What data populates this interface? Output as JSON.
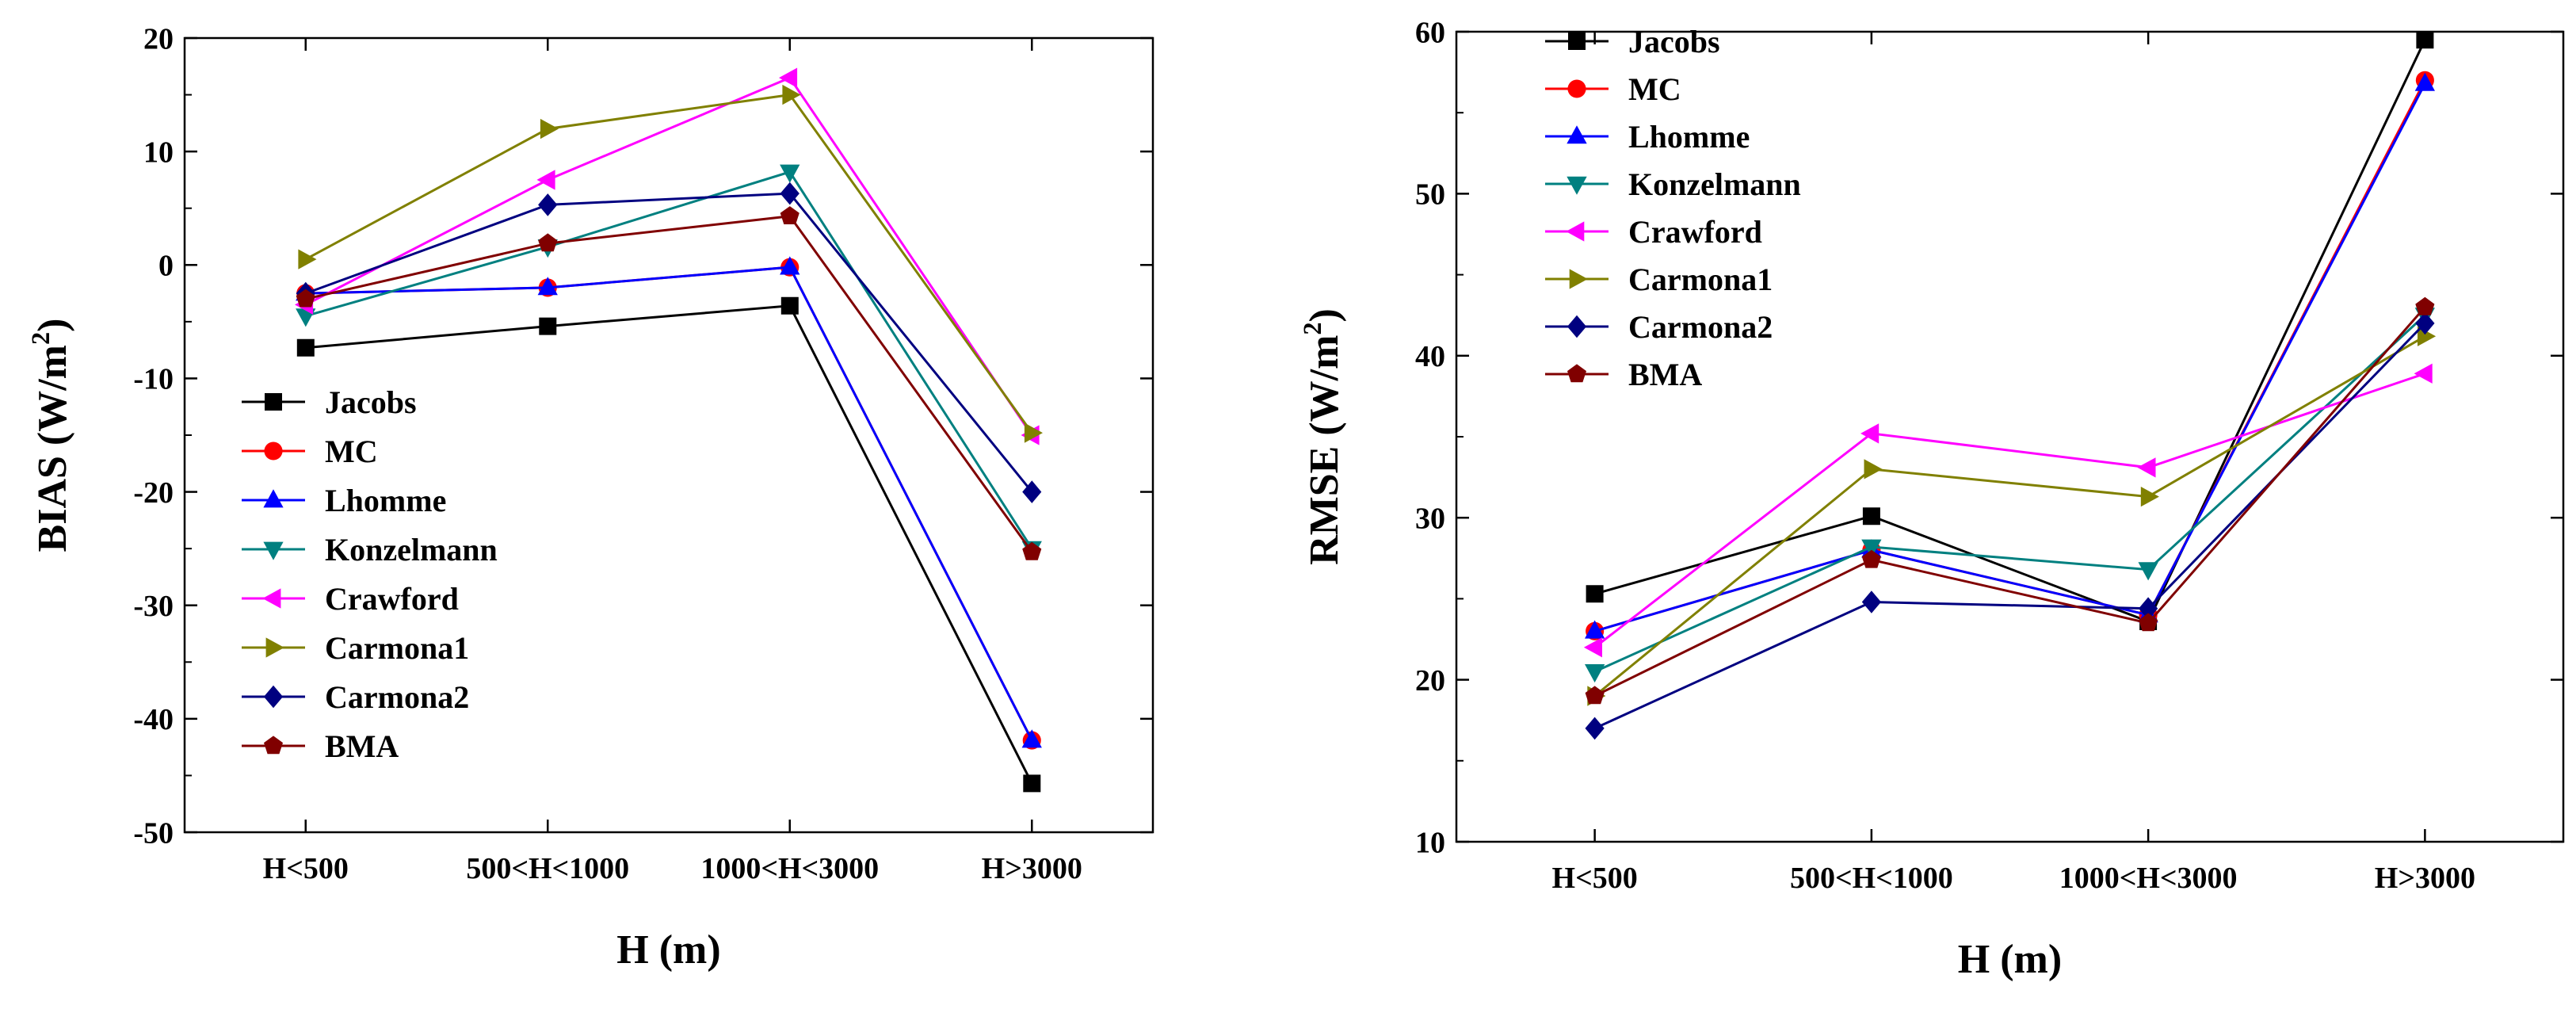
{
  "chart_data": [
    {
      "type": "line",
      "categories": [
        "H<500",
        "500<H<1000",
        "1000<H<3000",
        "H>3000"
      ],
      "xlabel": "H (m)",
      "ylabel": "BIAS (W/m2)",
      "ylim": [
        -50,
        20
      ],
      "yticks": [
        -50,
        -40,
        -30,
        -20,
        -10,
        0,
        10,
        20
      ],
      "grid": false,
      "legend": "bottom-left",
      "series": [
        {
          "name": "Jacobs",
          "color": "#000000",
          "marker": "square",
          "values": [
            -7.3,
            -5.4,
            -3.6,
            -45.7
          ]
        },
        {
          "name": "MC",
          "color": "#ff0000",
          "marker": "circle",
          "values": [
            -2.5,
            -2.0,
            -0.2,
            -41.9
          ]
        },
        {
          "name": "Lhomme",
          "color": "#0000ff",
          "marker": "triangle-up",
          "values": [
            -2.5,
            -2.0,
            -0.2,
            -41.9
          ]
        },
        {
          "name": "Konzelmann",
          "color": "#008080",
          "marker": "triangle-down",
          "values": [
            -4.5,
            1.6,
            8.2,
            -25.0
          ]
        },
        {
          "name": "Crawford",
          "color": "#ff00ff",
          "marker": "triangle-left",
          "values": [
            -3.5,
            7.5,
            16.5,
            -15.0
          ]
        },
        {
          "name": "Carmona1",
          "color": "#808000",
          "marker": "triangle-right",
          "values": [
            0.5,
            12.0,
            15.0,
            -14.8
          ]
        },
        {
          "name": "Carmona2",
          "color": "#000080",
          "marker": "diamond",
          "values": [
            -2.5,
            5.3,
            6.3,
            -20.0
          ]
        },
        {
          "name": "BMA",
          "color": "#800000",
          "marker": "pentagon",
          "values": [
            -3.0,
            1.9,
            4.3,
            -25.3
          ]
        }
      ]
    },
    {
      "type": "line",
      "categories": [
        "H<500",
        "500<H<1000",
        "1000<H<3000",
        "H>3000"
      ],
      "xlabel": "H (m)",
      "ylabel": "RMSE (W/m2)",
      "ylim": [
        10,
        60
      ],
      "yticks": [
        10,
        20,
        30,
        40,
        50,
        60
      ],
      "grid": false,
      "legend": "top-left",
      "series": [
        {
          "name": "Jacobs",
          "color": "#000000",
          "marker": "square",
          "values": [
            25.3,
            30.1,
            23.6,
            59.5
          ]
        },
        {
          "name": "MC",
          "color": "#ff0000",
          "marker": "circle",
          "values": [
            23.0,
            28.0,
            24.0,
            57.0
          ]
        },
        {
          "name": "Lhomme",
          "color": "#0000ff",
          "marker": "triangle-up",
          "values": [
            23.0,
            28.0,
            24.0,
            56.8
          ]
        },
        {
          "name": "Konzelmann",
          "color": "#008080",
          "marker": "triangle-down",
          "values": [
            20.5,
            28.2,
            26.8,
            42.5
          ]
        },
        {
          "name": "Crawford",
          "color": "#ff00ff",
          "marker": "triangle-left",
          "values": [
            22.0,
            35.2,
            33.1,
            38.9
          ]
        },
        {
          "name": "Carmona1",
          "color": "#808000",
          "marker": "triangle-right",
          "values": [
            19.0,
            33.0,
            31.3,
            41.2
          ]
        },
        {
          "name": "Carmona2",
          "color": "#000080",
          "marker": "diamond",
          "values": [
            17.0,
            24.8,
            24.4,
            42.0
          ]
        },
        {
          "name": "BMA",
          "color": "#800000",
          "marker": "pentagon",
          "values": [
            19.0,
            27.4,
            23.5,
            43.0
          ]
        }
      ]
    }
  ]
}
